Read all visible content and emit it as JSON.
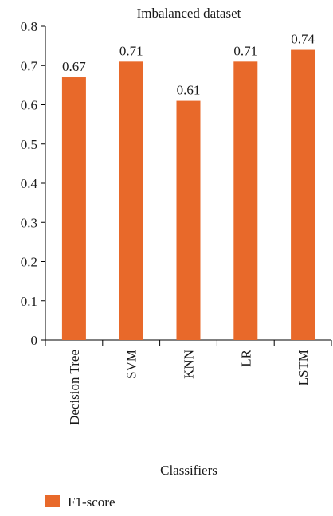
{
  "chart_data": {
    "type": "bar",
    "title": "Imbalanced dataset",
    "xlabel": "Classifiers",
    "ylabel": "",
    "categories": [
      "Decision Tree",
      "SVM",
      "KNN",
      "LR",
      "LSTM"
    ],
    "series": [
      {
        "name": "F1-score",
        "values": [
          0.67,
          0.71,
          0.61,
          0.71,
          0.74
        ]
      }
    ],
    "data_labels": [
      "0.67",
      "0.71",
      "0.61",
      "0.71",
      "0.74"
    ],
    "ylim": [
      0,
      0.8
    ],
    "yticks": [
      0,
      0.1,
      0.2,
      0.3,
      0.4,
      0.5,
      0.6,
      0.7,
      0.8
    ],
    "ytick_labels": [
      "0",
      "0.1",
      "0.2",
      "0.3",
      "0.4",
      "0.5",
      "0.6",
      "0.7",
      "0.8"
    ],
    "grid": false,
    "legend": "bottom-left",
    "bar_color": "#E8692A"
  }
}
